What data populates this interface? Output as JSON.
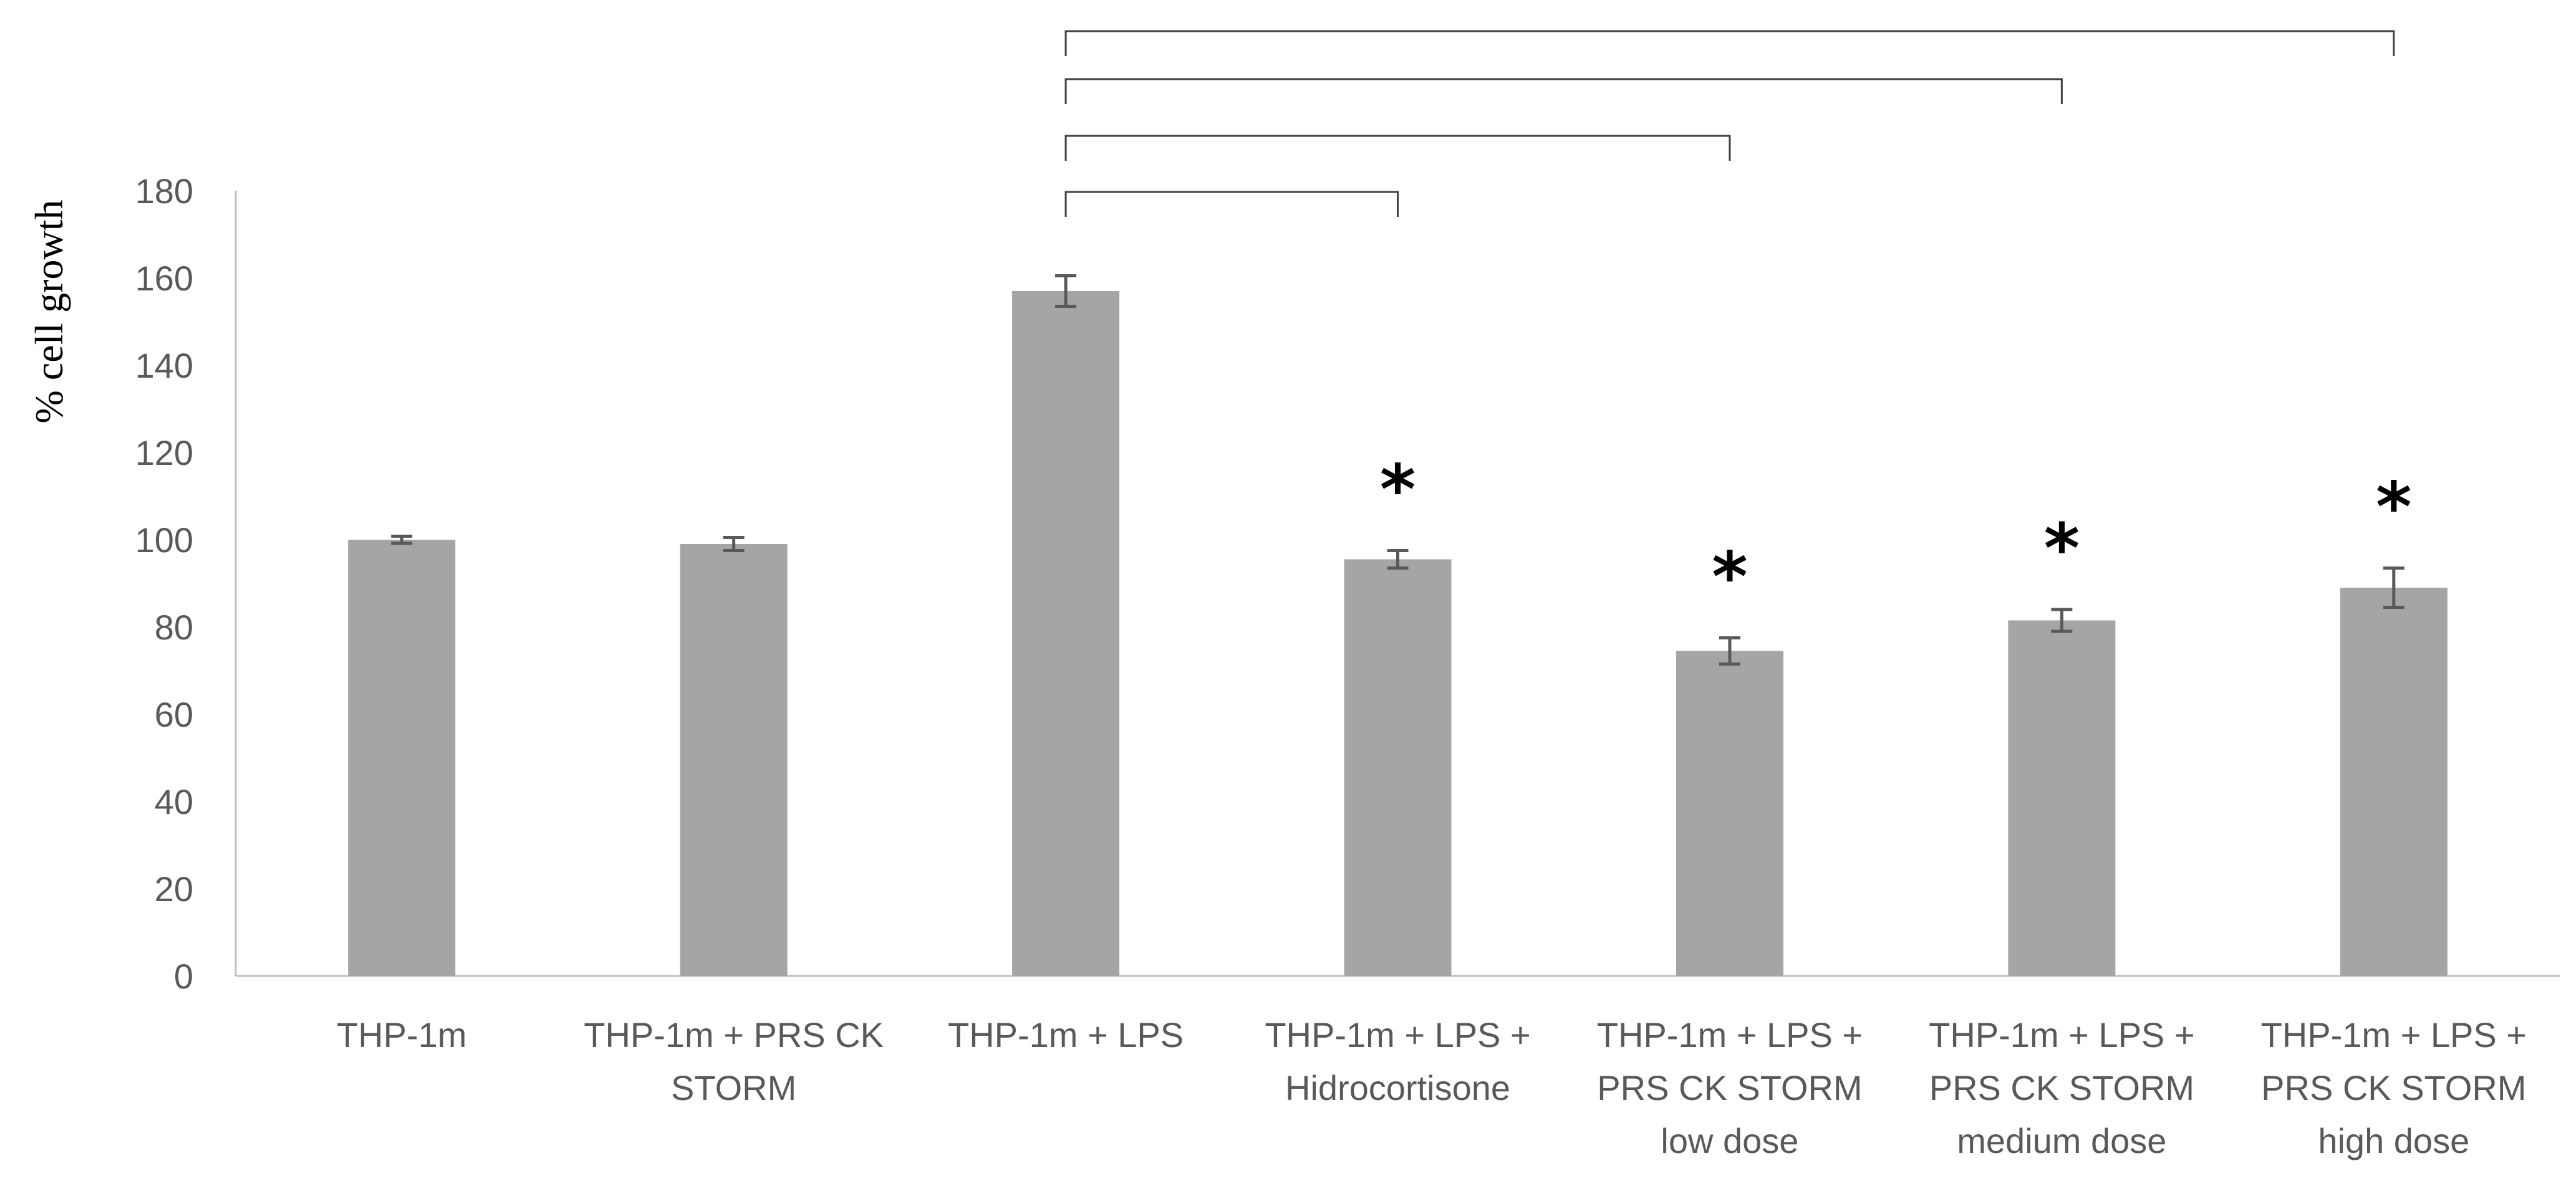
{
  "chart_data": {
    "type": "bar",
    "ylabel": "% cell growth",
    "ylim": [
      0,
      180
    ],
    "yticks": [
      0,
      20,
      40,
      60,
      80,
      100,
      120,
      140,
      160,
      180
    ],
    "categories": [
      [
        "THP-1m"
      ],
      [
        "THP-1m + PRS CK",
        "STORM"
      ],
      [
        "THP-1m + LPS"
      ],
      [
        "THP-1m + LPS +",
        "Hidrocortisone"
      ],
      [
        "THP-1m + LPS +",
        "PRS CK STORM",
        "low dose"
      ],
      [
        "THP-1m + LPS +",
        "PRS CK STORM",
        "medium dose"
      ],
      [
        "THP-1m + LPS +",
        "PRS CK STORM",
        "high dose"
      ]
    ],
    "values": [
      100,
      99,
      157,
      95.5,
      74.5,
      81.5,
      89
    ],
    "errors": [
      0.8,
      1.5,
      3.5,
      2,
      3,
      2.5,
      4.5
    ],
    "significance_marker": "*",
    "significant": [
      false,
      false,
      false,
      true,
      true,
      true,
      true
    ],
    "comparisons": [
      {
        "from": 2,
        "to": 3
      },
      {
        "from": 2,
        "to": 4
      },
      {
        "from": 2,
        "to": 5
      },
      {
        "from": 2,
        "to": 6
      }
    ],
    "bar_color": "#a5a5a5",
    "axis_color": "#bfbfbf",
    "text_color": "#595959",
    "grid": false
  }
}
